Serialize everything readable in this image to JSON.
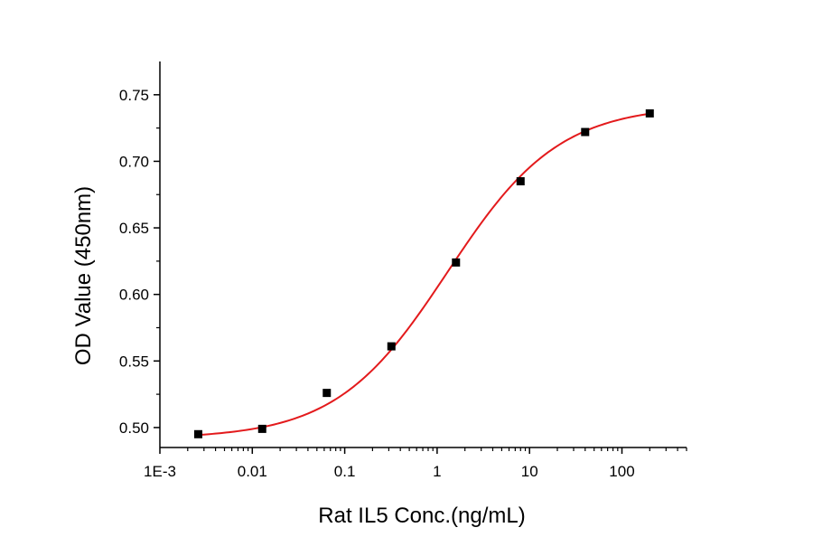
{
  "chart_data": {
    "type": "scatter",
    "title": "",
    "xlabel": "Rat IL5 Conc.(ng/mL)",
    "ylabel": "OD Value (450nm)",
    "x_scale": "log",
    "xlim": [
      0.001,
      500
    ],
    "ylim": [
      0.485,
      0.775
    ],
    "x_ticks": [
      {
        "value": 0.001,
        "label": "1E-3"
      },
      {
        "value": 0.01,
        "label": "0.01"
      },
      {
        "value": 0.1,
        "label": "0.1"
      },
      {
        "value": 1,
        "label": "1"
      },
      {
        "value": 10,
        "label": "10"
      },
      {
        "value": 100,
        "label": "100"
      }
    ],
    "y_ticks": [
      {
        "value": 0.5,
        "label": "0.50"
      },
      {
        "value": 0.55,
        "label": "0.55"
      },
      {
        "value": 0.6,
        "label": "0.60"
      },
      {
        "value": 0.65,
        "label": "0.65"
      },
      {
        "value": 0.7,
        "label": "0.70"
      },
      {
        "value": 0.75,
        "label": "0.75"
      }
    ],
    "grid": false,
    "legend": "none",
    "series": [
      {
        "marker": "square",
        "color": "#000000",
        "x": [
          0.0026,
          0.0128,
          0.064,
          0.32,
          1.6,
          8.0,
          40.0,
          200.0
        ],
        "y": [
          0.495,
          0.499,
          0.526,
          0.561,
          0.624,
          0.685,
          0.722,
          0.736
        ]
      }
    ],
    "fit_curve": {
      "type": "4PL",
      "color": "#e31a1c",
      "bottom": 0.4916,
      "top": 0.7423,
      "ec50": 1.3,
      "hill": 0.72
    }
  }
}
